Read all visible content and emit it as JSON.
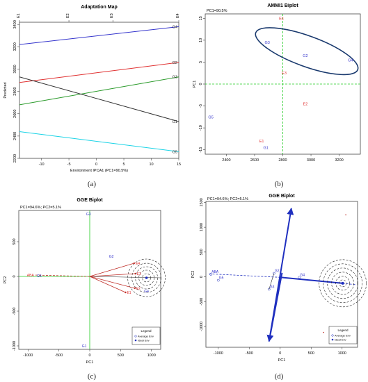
{
  "captions": [
    "(a)",
    "(b)",
    "(c)",
    "(d)"
  ],
  "chart_data": [
    {
      "type": "line",
      "title": "Adaptation Map",
      "xlabel": "Environment IPCA1 (PC1=90.5%)",
      "ylabel": "Predicted",
      "xlim": [
        -14,
        15
      ],
      "ylim": [
        2200,
        3420
      ],
      "xticks": [
        -10,
        -5,
        0,
        5,
        10,
        15
      ],
      "yticks": [
        2200,
        2400,
        2600,
        2800,
        3000,
        3200,
        3400
      ],
      "top_axis_labels": [
        {
          "label": "E1",
          "x": -14
        },
        {
          "label": "E2",
          "x": -5
        },
        {
          "label": "E3",
          "x": 3
        },
        {
          "label": "E4",
          "x": 15
        }
      ],
      "series": [
        {
          "name": "G4",
          "color": "#3333cc",
          "x": [
            -14,
            15
          ],
          "y": [
            3220,
            3380
          ]
        },
        {
          "name": "G2",
          "color": "#e03030",
          "x": [
            -14,
            15
          ],
          "y": [
            2880,
            3060
          ]
        },
        {
          "name": "G3",
          "color": "#2a9a2a",
          "x": [
            -14,
            15
          ],
          "y": [
            2680,
            2930
          ]
        },
        {
          "name": "G1",
          "color": "#333333",
          "x": [
            -14,
            15
          ],
          "y": [
            2930,
            2530
          ]
        },
        {
          "name": "G5",
          "color": "#19d3e6",
          "x": [
            -14,
            15
          ],
          "y": [
            2440,
            2260
          ]
        }
      ]
    },
    {
      "type": "scatter",
      "title": "AMMI1 Biplot",
      "subtitle": "PC1=90.5%",
      "ylabel": "PC1",
      "xlim": [
        2250,
        3350
      ],
      "ylim": [
        -16,
        16
      ],
      "xticks": [
        2400,
        2600,
        2800,
        3000,
        3200
      ],
      "yticks": [
        -15,
        -10,
        -5,
        0,
        5,
        10,
        15
      ],
      "reference_lines": {
        "x": 2800,
        "y": 0
      },
      "points": [
        {
          "label": "E4",
          "x": 2790,
          "y": 15,
          "color": "#e03030"
        },
        {
          "label": "E3",
          "x": 2810,
          "y": 2.5,
          "color": "#e03030"
        },
        {
          "label": "E2",
          "x": 2960,
          "y": -4.5,
          "color": "#e03030"
        },
        {
          "label": "E1",
          "x": 2650,
          "y": -13,
          "color": "#e03030"
        },
        {
          "label": "G3",
          "x": 2690,
          "y": 9.5,
          "color": "#3333cc"
        },
        {
          "label": "G2",
          "x": 2960,
          "y": 6.5,
          "color": "#3333cc"
        },
        {
          "label": "G4",
          "x": 3280,
          "y": 5.5,
          "color": "#3333cc"
        },
        {
          "label": "G5",
          "x": 2290,
          "y": -7.5,
          "color": "#3333cc"
        },
        {
          "label": "G1",
          "x": 2680,
          "y": -14.5,
          "color": "#3333cc"
        }
      ]
    },
    {
      "type": "scatter",
      "title": "GGE Biplot",
      "subtitle": "PC1=94.6%; PC2=5.1%",
      "xlabel": "PC1",
      "ylabel": "PC2",
      "xlim": [
        -1150,
        1150
      ],
      "ylim": [
        -1050,
        950
      ],
      "xticks": [
        -1000,
        -500,
        0,
        500,
        1000
      ],
      "yticks": [
        -1000,
        -500,
        0,
        500
      ],
      "points": [
        {
          "label": "G3",
          "x": -80,
          "y": 900,
          "color": "#3333cc"
        },
        {
          "label": "G2",
          "x": 290,
          "y": 290,
          "color": "#3333cc"
        },
        {
          "label": "ABA",
          "x": -1040,
          "y": 20,
          "color": "#e03030"
        },
        {
          "label": "G5",
          "x": -880,
          "y": 10,
          "color": "#3333cc"
        },
        {
          "label": "E4",
          "x": 720,
          "y": 190,
          "color": "#e03030"
        },
        {
          "label": "E3",
          "x": 740,
          "y": 40,
          "color": "#e03030"
        },
        {
          "label": "E2",
          "x": 730,
          "y": -170,
          "color": "#e03030"
        },
        {
          "label": "E1",
          "x": 580,
          "y": -230,
          "color": "#e03030"
        },
        {
          "label": "G4",
          "x": 860,
          "y": -210,
          "color": "#3333cc"
        },
        {
          "label": "G1",
          "x": -150,
          "y": -1000,
          "color": "#3333cc"
        }
      ],
      "ideal_environment": {
        "x": 920,
        "y": -20
      },
      "legend": {
        "title": "Legend",
        "items": [
          "Average Env",
          "Ideal Env"
        ],
        "placement": "bottom-right"
      }
    },
    {
      "type": "scatter",
      "title": "GGE Biplot",
      "subtitle": "PC1=94.6%; PC2=5.1%",
      "xlabel": "PC1",
      "ylabel": "PC2",
      "xlim": [
        -1200,
        1250
      ],
      "ylim": [
        -1420,
        1520
      ],
      "xticks": [
        -1000,
        -500,
        0,
        500,
        1000
      ],
      "yticks": [
        -1000,
        -500,
        0,
        500,
        1000,
        1500
      ],
      "points": [
        {
          "label": "ABA",
          "x": -1120,
          "y": 50,
          "color": "#3333cc"
        },
        {
          "label": "G5",
          "x": -1000,
          "y": -70,
          "color": "#3333cc"
        },
        {
          "label": "G2",
          "x": -100,
          "y": 70,
          "color": "#3333cc"
        },
        {
          "label": "G3",
          "x": -180,
          "y": -250,
          "color": "#3333cc"
        },
        {
          "label": "G4",
          "x": 310,
          "y": -10,
          "color": "#3333cc"
        }
      ],
      "ideal_environment": {
        "x": 1010,
        "y": -130
      },
      "legend": {
        "title": "Legend",
        "items": [
          "Average Env",
          "Ideal Env"
        ],
        "placement": "bottom-right"
      }
    }
  ]
}
